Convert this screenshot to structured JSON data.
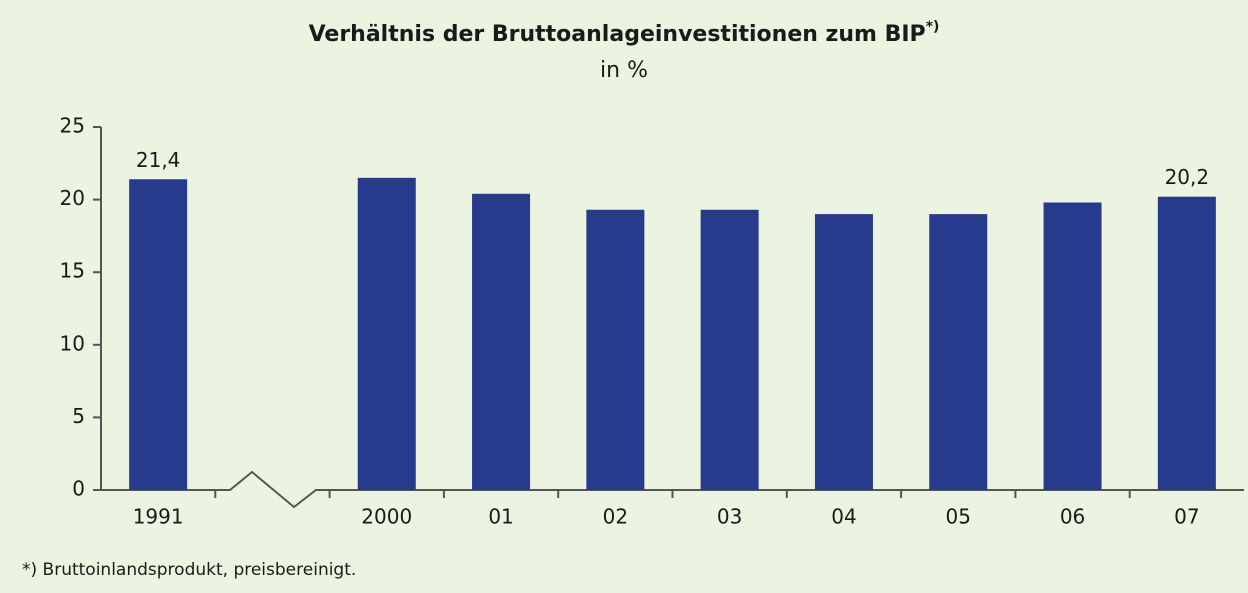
{
  "chart_data": {
    "type": "bar",
    "title": "Verhältnis der Bruttoanlageinvestitionen zum BIP",
    "title_note": "*)",
    "subtitle": "in %",
    "footnote": "*) Bruttoinlandsprodukt, preisbereinigt.",
    "categories": [
      "1991",
      null,
      "2000",
      "01",
      "02",
      "03",
      "04",
      "05",
      "06",
      "07"
    ],
    "values": [
      21.4,
      null,
      21.5,
      20.4,
      19.3,
      19.3,
      19.0,
      19.0,
      19.8,
      20.2
    ],
    "value_labels": [
      "21,4",
      null,
      null,
      null,
      null,
      null,
      null,
      null,
      null,
      "20,2"
    ],
    "color": "#283a8c",
    "ylim": [
      0,
      25
    ],
    "yticks": [
      0,
      5,
      10,
      15,
      20,
      25
    ]
  }
}
